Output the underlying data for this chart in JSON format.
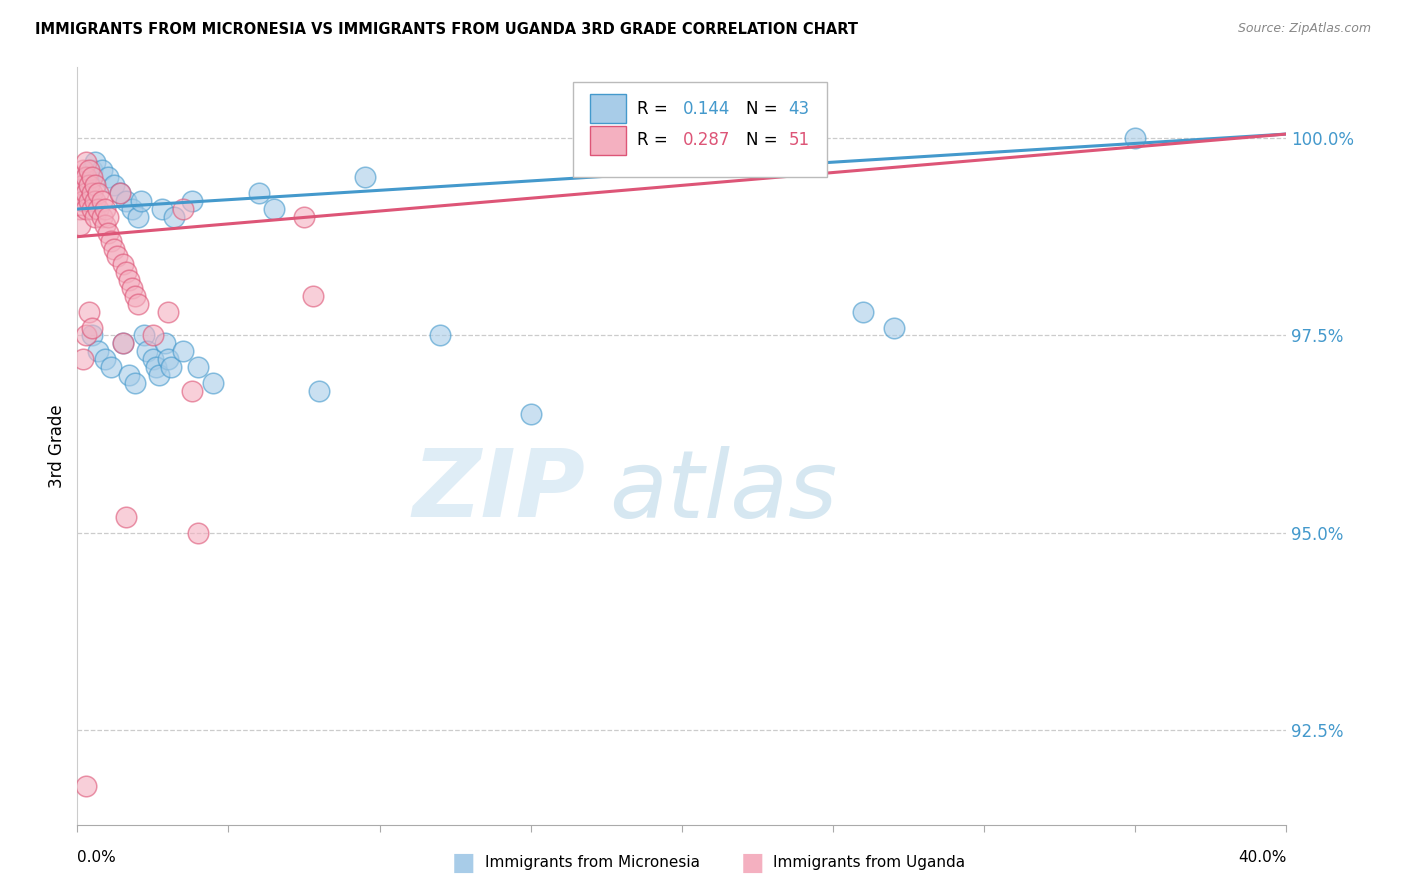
{
  "title": "IMMIGRANTS FROM MICRONESIA VS IMMIGRANTS FROM UGANDA 3RD GRADE CORRELATION CHART",
  "source": "Source: ZipAtlas.com",
  "ylabel": "3rd Grade",
  "ytick_values": [
    92.5,
    95.0,
    97.5,
    100.0
  ],
  "xlim": [
    0.0,
    40.0
  ],
  "ylim": [
    91.3,
    100.9
  ],
  "blue_R": "0.144",
  "blue_N": "43",
  "pink_R": "0.287",
  "pink_N": "51",
  "blue_color": "#a8cce8",
  "pink_color": "#f4b0c0",
  "line_blue": "#4499cc",
  "line_pink": "#dd5577",
  "legend_label_blue": "Immigrants from Micronesia",
  "legend_label_pink": "Immigrants from Uganda",
  "blue_x": [
    0.2,
    0.3,
    0.4,
    0.5,
    0.5,
    0.6,
    0.7,
    0.8,
    0.9,
    1.0,
    1.1,
    1.2,
    1.4,
    1.5,
    1.6,
    1.7,
    1.8,
    1.9,
    2.0,
    2.1,
    2.2,
    2.3,
    2.5,
    2.6,
    2.7,
    2.8,
    2.9,
    3.0,
    3.1,
    3.2,
    3.5,
    3.8,
    4.0,
    4.5,
    6.0,
    8.0,
    9.5,
    12.0,
    15.0,
    26.0,
    27.0,
    35.0,
    6.5
  ],
  "blue_y": [
    99.3,
    99.5,
    99.4,
    99.6,
    97.5,
    99.7,
    97.3,
    99.6,
    97.2,
    99.5,
    97.1,
    99.4,
    99.3,
    97.4,
    99.2,
    97.0,
    99.1,
    96.9,
    99.0,
    99.2,
    97.5,
    97.3,
    97.2,
    97.1,
    97.0,
    99.1,
    97.4,
    97.2,
    97.1,
    99.0,
    97.3,
    99.2,
    97.1,
    96.9,
    99.3,
    96.8,
    99.5,
    97.5,
    96.5,
    97.8,
    97.6,
    100.0,
    99.1
  ],
  "pink_x": [
    0.1,
    0.1,
    0.1,
    0.1,
    0.2,
    0.2,
    0.2,
    0.3,
    0.3,
    0.3,
    0.3,
    0.4,
    0.4,
    0.4,
    0.5,
    0.5,
    0.5,
    0.6,
    0.6,
    0.6,
    0.7,
    0.7,
    0.8,
    0.8,
    0.9,
    0.9,
    1.0,
    1.0,
    1.1,
    1.2,
    1.3,
    1.4,
    1.5,
    1.5,
    1.6,
    1.7,
    1.8,
    1.9,
    2.0,
    2.5,
    3.0,
    3.5,
    4.0,
    7.5,
    7.8,
    0.2,
    0.4,
    0.3,
    3.8,
    0.5,
    1.6
  ],
  "pink_y": [
    99.5,
    99.3,
    99.1,
    98.9,
    99.6,
    99.4,
    99.2,
    99.7,
    99.5,
    99.3,
    99.1,
    99.6,
    99.4,
    99.2,
    99.5,
    99.3,
    99.1,
    99.4,
    99.2,
    99.0,
    99.3,
    99.1,
    99.2,
    99.0,
    99.1,
    98.9,
    99.0,
    98.8,
    98.7,
    98.6,
    98.5,
    99.3,
    98.4,
    97.4,
    98.3,
    98.2,
    98.1,
    98.0,
    97.9,
    97.5,
    97.8,
    99.1,
    95.0,
    99.0,
    98.0,
    97.2,
    97.8,
    97.5,
    96.8,
    97.6,
    95.2
  ],
  "pink_outlier_x": [
    0.3
  ],
  "pink_outlier_y": [
    91.8
  ]
}
